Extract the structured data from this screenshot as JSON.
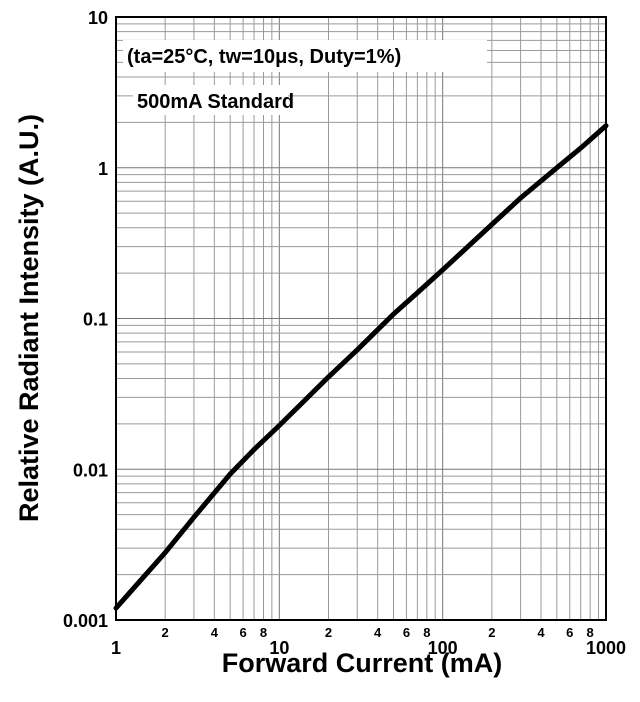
{
  "chart_data": {
    "type": "line",
    "x_scale": "log",
    "y_scale": "log",
    "xlabel": "Forward Current (mA)",
    "ylabel": "Relative Radiant Intensity (A.U.)",
    "xlim": [
      1,
      1000
    ],
    "ylim": [
      0.001,
      10
    ],
    "x_ticks": [
      "1",
      "10",
      "100",
      "1000"
    ],
    "x_minor_ticks": [
      "2",
      "4",
      "6",
      "8"
    ],
    "y_ticks": [
      "0.001",
      "0.01",
      "0.1",
      "1",
      "10"
    ],
    "grid": true,
    "annotations": [
      "(ta=25°C, tw=10μs, Duty=1%)",
      "500mA Standard"
    ],
    "series": [
      {
        "x": [
          1,
          2,
          3,
          5,
          7,
          10,
          20,
          30,
          50,
          70,
          100,
          200,
          300,
          500,
          700,
          1000
        ],
        "y": [
          0.0012,
          0.0028,
          0.0048,
          0.0093,
          0.0135,
          0.0195,
          0.041,
          0.062,
          0.107,
          0.148,
          0.21,
          0.42,
          0.63,
          1.0,
          1.35,
          1.9
        ]
      }
    ]
  }
}
